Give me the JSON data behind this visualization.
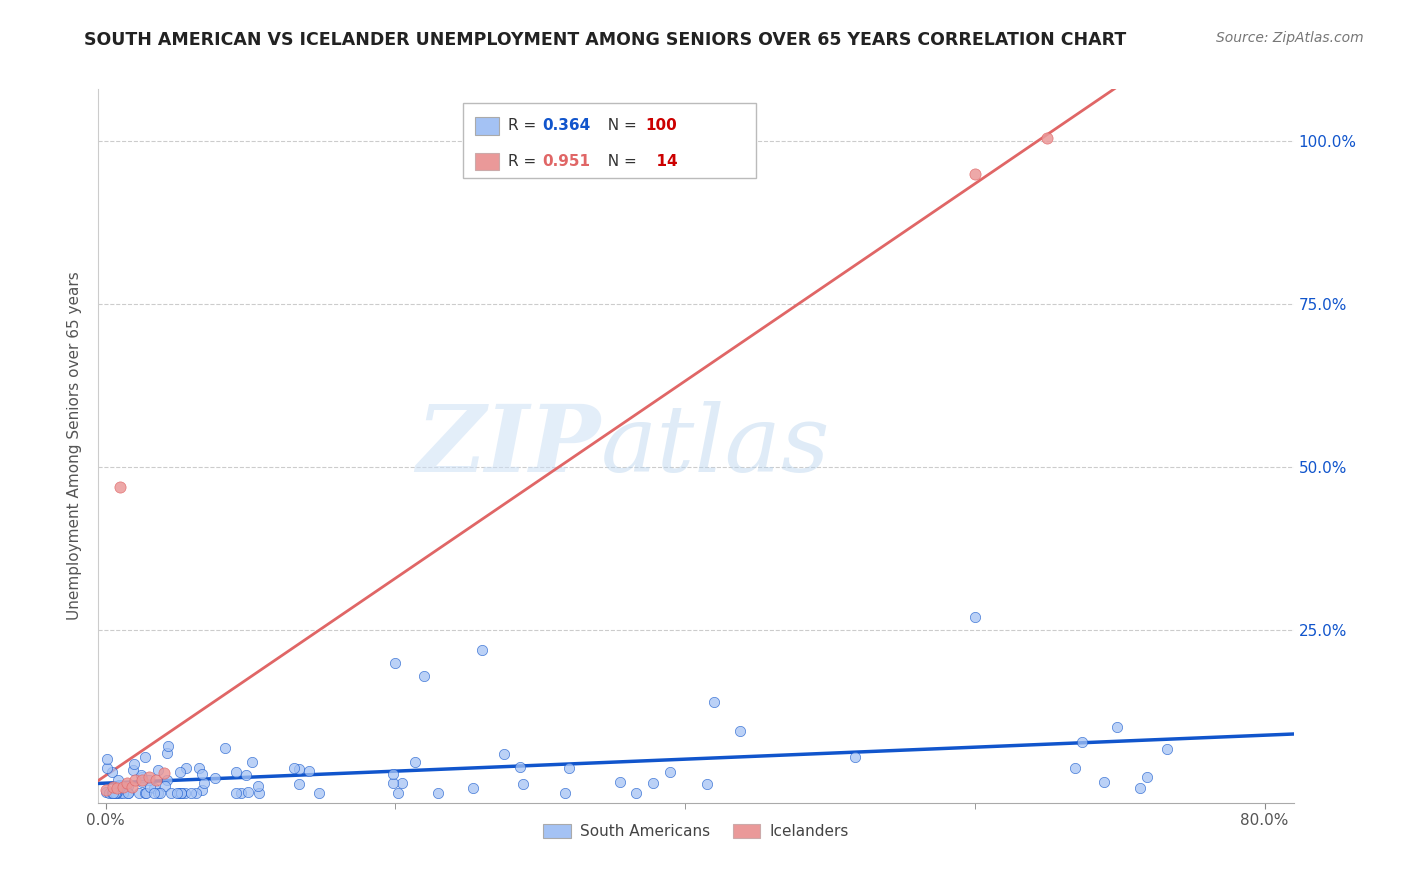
{
  "title": "SOUTH AMERICAN VS ICELANDER UNEMPLOYMENT AMONG SENIORS OVER 65 YEARS CORRELATION CHART",
  "source": "Source: ZipAtlas.com",
  "ylabel": "Unemployment Among Seniors over 65 years",
  "xlim": [
    -0.005,
    0.82
  ],
  "ylim": [
    -0.015,
    1.08
  ],
  "xtick_labels": [
    "0.0%",
    "80.0%"
  ],
  "xtick_vals": [
    0.0,
    0.8
  ],
  "ytick_labels_right": [
    "100.0%",
    "75.0%",
    "50.0%",
    "25.0%"
  ],
  "ytick_vals": [
    1.0,
    0.75,
    0.5,
    0.25
  ],
  "legend_labels": [
    "South Americans",
    "Icelanders"
  ],
  "sa_color": "#a4c2f4",
  "ic_color": "#ea9999",
  "sa_line_color": "#1155cc",
  "ic_line_color": "#e06666",
  "sa_R": 0.364,
  "sa_N": 100,
  "ic_R": 0.951,
  "ic_N": 14,
  "watermark_zip": "ZIP",
  "watermark_atlas": "atlas",
  "background_color": "#ffffff",
  "grid_color": "#cccccc"
}
